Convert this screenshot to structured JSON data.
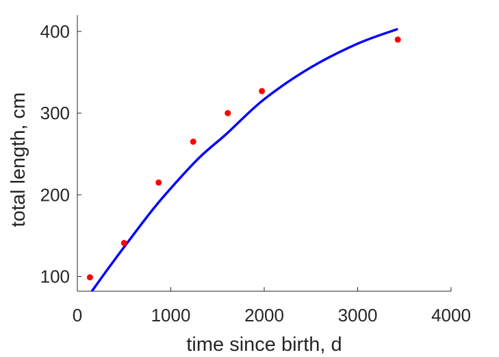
{
  "chart_data": {
    "type": "scatter",
    "xlabel": "time since birth, d",
    "ylabel": "total length, cm",
    "xlim": [
      0,
      4000
    ],
    "ylim": [
      82,
      420
    ],
    "xticks": [
      0,
      1000,
      2000,
      3000,
      4000
    ],
    "yticks": [
      100,
      200,
      300,
      400
    ],
    "x_tick_labels": [
      "0",
      "1000",
      "2000",
      "3000",
      "4000"
    ],
    "y_tick_labels": [
      "100",
      "200",
      "300",
      "400"
    ],
    "grid": false,
    "series": [
      {
        "kind": "points",
        "color": "#ff0000",
        "x": [
          135,
          500,
          870,
          1240,
          1610,
          1975,
          3430
        ],
        "y": [
          99,
          141,
          215,
          265,
          300,
          327,
          390
        ]
      },
      {
        "kind": "line",
        "color": "#0000ff",
        "x": [
          155,
          300,
          500,
          800,
          1000,
          1300,
          1600,
          2000,
          2500,
          3000,
          3430
        ],
        "y": [
          82,
          105,
          136,
          181,
          208,
          245,
          275,
          317,
          356,
          385,
          403
        ]
      }
    ]
  }
}
